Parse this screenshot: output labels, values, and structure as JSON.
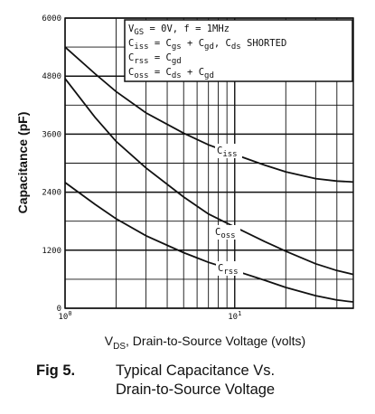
{
  "chart_data": {
    "type": "line",
    "xlabel_main": "V",
    "xlabel_sub": "DS",
    "xlabel_rest": ", Drain-to-Source Voltage (volts)",
    "ylabel": "Capacitance (pF)",
    "x_scale": "log",
    "xlim": [
      1,
      50
    ],
    "ylim": [
      0,
      6000
    ],
    "y_ticks": [
      "0",
      "1200",
      "2400",
      "3600",
      "4800",
      "6000"
    ],
    "x_ticks": [
      {
        "base": "10",
        "exp": "0"
      },
      {
        "base": "10",
        "exp": "1"
      }
    ],
    "grid": true,
    "series": [
      {
        "name": "Ciss",
        "label_main": "C",
        "label_sub": "iss",
        "x": [
          1,
          1.5,
          2,
          3,
          5,
          7,
          10,
          15,
          20,
          30,
          40,
          50
        ],
        "y": [
          5400,
          4850,
          4480,
          4040,
          3620,
          3380,
          3180,
          2960,
          2820,
          2680,
          2630,
          2610
        ]
      },
      {
        "name": "Coss",
        "label_main": "C",
        "label_sub": "oss",
        "x": [
          1,
          1.5,
          2,
          3,
          5,
          7,
          10,
          15,
          20,
          30,
          40,
          50
        ],
        "y": [
          4750,
          3950,
          3450,
          2900,
          2300,
          1950,
          1680,
          1380,
          1180,
          920,
          780,
          700
        ]
      },
      {
        "name": "Crss",
        "label_main": "C",
        "label_sub": "rss",
        "x": [
          1,
          1.5,
          2,
          3,
          5,
          7,
          10,
          15,
          20,
          30,
          40,
          50
        ],
        "y": [
          2600,
          2150,
          1850,
          1500,
          1150,
          950,
          780,
          580,
          430,
          260,
          170,
          130
        ]
      }
    ],
    "legend": {
      "placement": "top-right",
      "lines": [
        [
          {
            "t": "V"
          },
          {
            "t": "GS",
            "sub": true
          },
          {
            "t": " = 0V,  f = 1MHz"
          }
        ],
        [
          {
            "t": "C"
          },
          {
            "t": "iss",
            "sub": true
          },
          {
            "t": " = C"
          },
          {
            "t": "gs",
            "sub": true
          },
          {
            "t": " + C"
          },
          {
            "t": "gd",
            "sub": true
          },
          {
            "t": ",  C"
          },
          {
            "t": "ds",
            "sub": true
          },
          {
            "t": " SHORTED"
          }
        ],
        [
          {
            "t": "C"
          },
          {
            "t": "rss",
            "sub": true
          },
          {
            "t": " = C"
          },
          {
            "t": "gd",
            "sub": true
          }
        ],
        [
          {
            "t": "C"
          },
          {
            "t": "oss",
            "sub": true
          },
          {
            "t": " = C"
          },
          {
            "t": "ds",
            "sub": true
          },
          {
            "t": " + C"
          },
          {
            "t": "gd",
            "sub": true
          }
        ]
      ]
    }
  },
  "caption": {
    "number": "Fig 5.",
    "line1": "Typical Capacitance Vs.",
    "line2": "Drain-to-Source Voltage"
  }
}
